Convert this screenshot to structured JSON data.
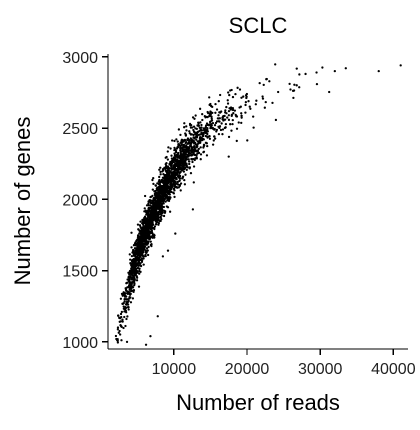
{
  "chart_data": {
    "type": "scatter",
    "title": "SCLC",
    "xlabel": "Number of reads",
    "ylabel": "Number of genes",
    "xlim": [
      1000,
      42000
    ],
    "ylim": [
      950,
      3020
    ],
    "xticks": [
      10000,
      20000,
      30000,
      40000
    ],
    "xtick_labels": [
      "10000",
      "20000",
      "30000",
      "40000"
    ],
    "yticks": [
      1000,
      1500,
      2000,
      2500,
      3000
    ],
    "ytick_labels": [
      "1000",
      "1500",
      "2000",
      "2500",
      "3000"
    ],
    "grid": false,
    "legend": "none",
    "point_color": "#000000",
    "n_points": 2400,
    "trend": [
      [
        2000,
        1030
      ],
      [
        2500,
        1120
      ],
      [
        3000,
        1240
      ],
      [
        3500,
        1340
      ],
      [
        4000,
        1440
      ],
      [
        5000,
        1620
      ],
      [
        6000,
        1780
      ],
      [
        7000,
        1900
      ],
      [
        8000,
        2020
      ],
      [
        9000,
        2120
      ],
      [
        10000,
        2210
      ],
      [
        11000,
        2290
      ],
      [
        12000,
        2360
      ],
      [
        13000,
        2420
      ],
      [
        14000,
        2480
      ],
      [
        15000,
        2530
      ],
      [
        16000,
        2570
      ],
      [
        17000,
        2600
      ],
      [
        18000,
        2630
      ],
      [
        20000,
        2680
      ],
      [
        22000,
        2720
      ],
      [
        24000,
        2760
      ],
      [
        26000,
        2800
      ],
      [
        28000,
        2830
      ],
      [
        30000,
        2860
      ],
      [
        34000,
        2900
      ],
      [
        38000,
        2930
      ],
      [
        41000,
        2950
      ]
    ],
    "outliers": [
      [
        3600,
        1000
      ],
      [
        6200,
        980
      ],
      [
        6800,
        1040
      ],
      [
        7800,
        1180
      ],
      [
        8500,
        1600
      ],
      [
        9200,
        1640
      ],
      [
        10200,
        1760
      ],
      [
        12600,
        1930
      ],
      [
        17500,
        2300
      ],
      [
        18600,
        2410
      ],
      [
        28000,
        2880
      ],
      [
        29500,
        2890
      ],
      [
        30300,
        2925
      ],
      [
        32000,
        2900
      ],
      [
        33500,
        2920
      ],
      [
        38000,
        2900
      ],
      [
        41000,
        2940
      ]
    ]
  }
}
